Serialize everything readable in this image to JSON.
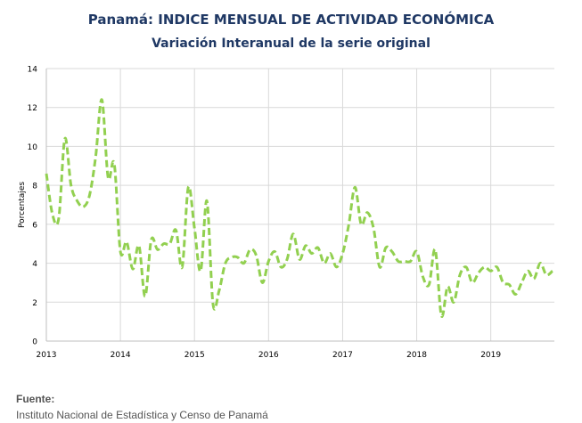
{
  "title": "Panamá: INDICE MENSUAL DE ACTIVIDAD ECONÓMICA",
  "subtitle": "Variación Interanual de la serie original",
  "source": {
    "label": "Fuente:",
    "text": "Instituto Nacional de Estadística y Censo de Panamá"
  },
  "colors": {
    "series": "#92d050",
    "grid": "#d9d9d9",
    "axis": "#bfbfbf",
    "title": "#1f3864"
  },
  "chart_data": {
    "type": "line",
    "title": "Panamá: INDICE MENSUAL DE ACTIVIDAD ECONÓMICA",
    "subtitle": "Variación Interanual de la serie original",
    "xlabel": "",
    "ylabel": "Porcentajes",
    "ylim": [
      0,
      14
    ],
    "yticks": [
      "0",
      "2",
      "4",
      "6",
      "8",
      "10",
      "12",
      "14"
    ],
    "xticks": [
      "2013",
      "2014",
      "2015",
      "2016",
      "2017",
      "2018",
      "2019"
    ],
    "xlim": [
      "2013-01",
      "2019-11"
    ],
    "grid": true,
    "line_style": "dashed",
    "series": [
      {
        "x": [
          "2013-01",
          "2013-02",
          "2013-03",
          "2013-04",
          "2013-05",
          "2013-06",
          "2013-07",
          "2013-08",
          "2013-09",
          "2013-10",
          "2013-11",
          "2013-12",
          "2014-01",
          "2014-02",
          "2014-03",
          "2014-04",
          "2014-05",
          "2014-06",
          "2014-07",
          "2014-08",
          "2014-09",
          "2014-10",
          "2014-11",
          "2014-12",
          "2015-01",
          "2015-02",
          "2015-03",
          "2015-04",
          "2015-05",
          "2015-06",
          "2015-07",
          "2015-08",
          "2015-09",
          "2015-10",
          "2015-11",
          "2015-12",
          "2016-01",
          "2016-02",
          "2016-03",
          "2016-04",
          "2016-05",
          "2016-06",
          "2016-07",
          "2016-08",
          "2016-09",
          "2016-10",
          "2016-11",
          "2016-12",
          "2017-01",
          "2017-02",
          "2017-03",
          "2017-04",
          "2017-05",
          "2017-06",
          "2017-07",
          "2017-08",
          "2017-09",
          "2017-10",
          "2017-11",
          "2017-12",
          "2018-01",
          "2018-02",
          "2018-03",
          "2018-04",
          "2018-05",
          "2018-06",
          "2018-07",
          "2018-08",
          "2018-09",
          "2018-10",
          "2018-11",
          "2018-12",
          "2019-01",
          "2019-02",
          "2019-03",
          "2019-04",
          "2019-05",
          "2019-06",
          "2019-07",
          "2019-08",
          "2019-09",
          "2019-10",
          "2019-11"
        ],
        "values": [
          8.6,
          6.5,
          6.3,
          10.4,
          8.0,
          7.2,
          6.9,
          7.5,
          9.5,
          12.4,
          8.4,
          9.1,
          4.6,
          5.1,
          3.7,
          4.9,
          2.3,
          5.2,
          4.7,
          5.0,
          5.0,
          5.7,
          3.8,
          7.9,
          5.8,
          3.6,
          7.2,
          1.9,
          2.6,
          4.0,
          4.3,
          4.3,
          4.0,
          4.7,
          4.4,
          3.0,
          4.1,
          4.6,
          3.8,
          4.2,
          5.5,
          4.2,
          4.9,
          4.5,
          4.8,
          4.0,
          4.5,
          3.8,
          4.5,
          6.0,
          7.9,
          6.0,
          6.6,
          5.8,
          3.8,
          4.8,
          4.6,
          4.1,
          4.1,
          4.1,
          4.6,
          3.3,
          2.9,
          4.7,
          1.3,
          2.8,
          2.0,
          3.4,
          3.8,
          3.0,
          3.5,
          3.8,
          3.6,
          3.8,
          3.0,
          2.9,
          2.4,
          3.0,
          3.6,
          3.2,
          4.0,
          3.4,
          3.6
        ]
      }
    ]
  }
}
